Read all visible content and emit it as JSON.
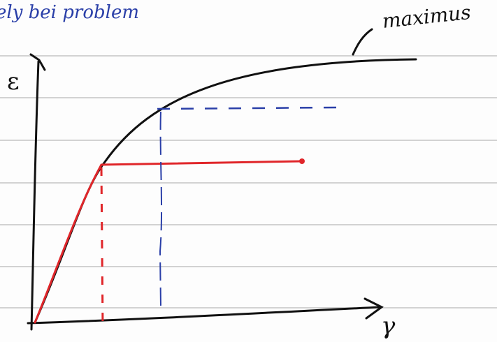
{
  "notes": {
    "top_text": "ely bei problem",
    "curve_label": "maximus",
    "y_axis_label": "ε",
    "x_axis_label": "γ"
  }
}
